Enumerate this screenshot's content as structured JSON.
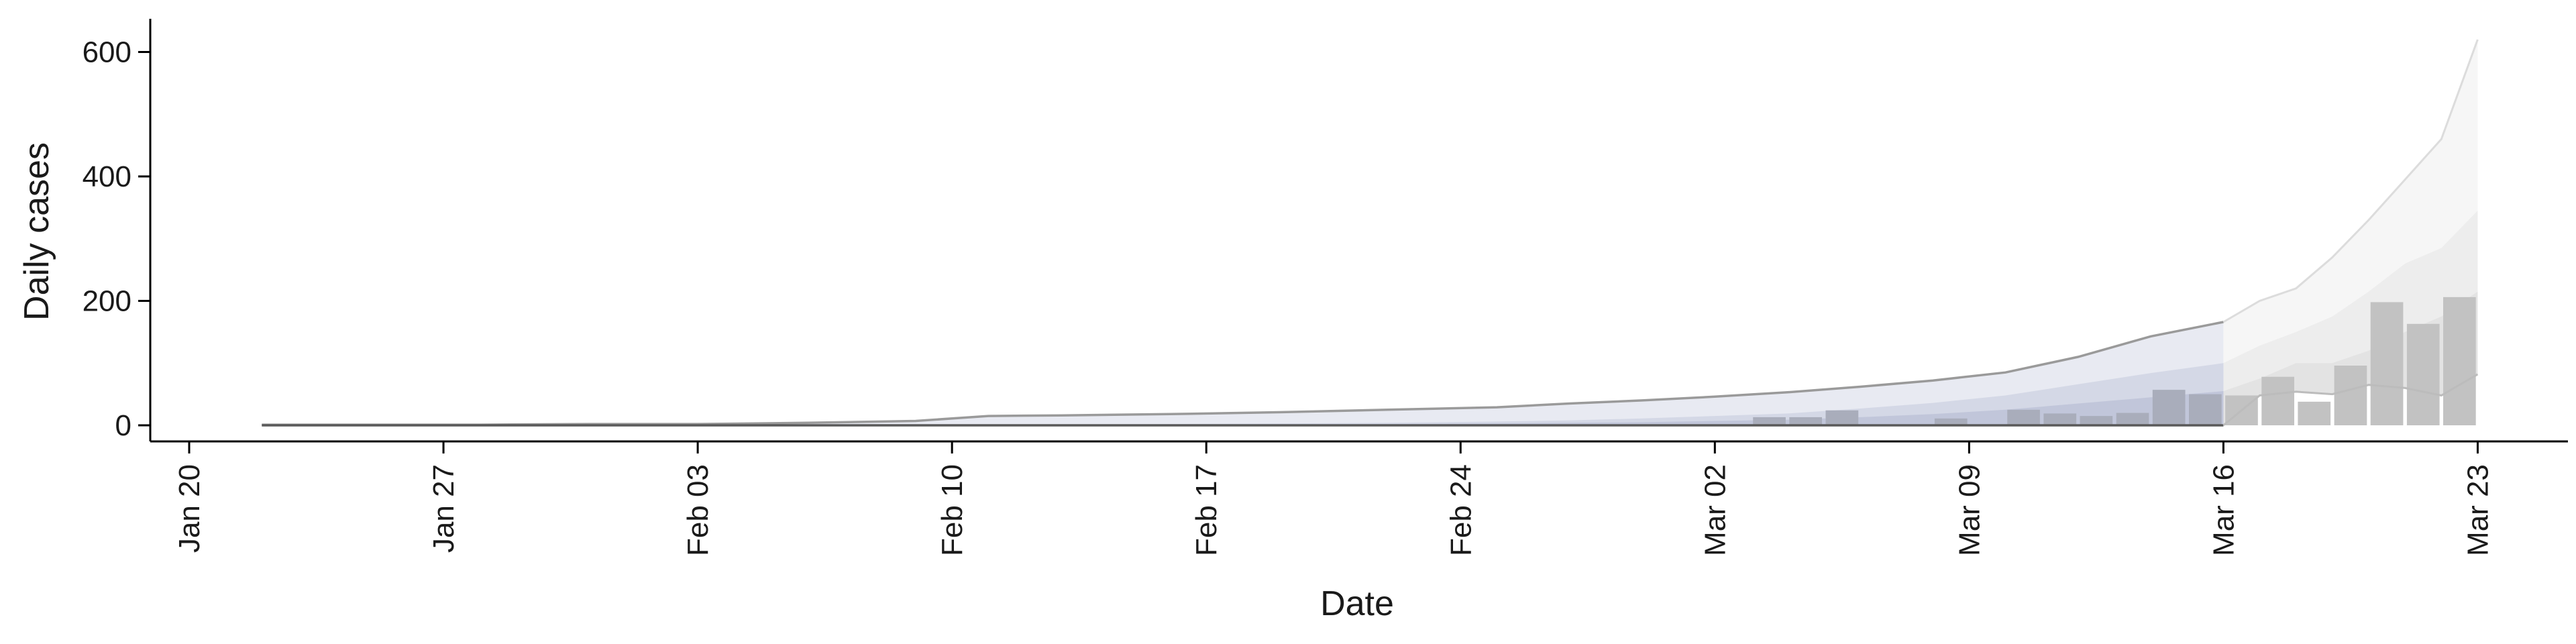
{
  "chart_data": {
    "type": "bar",
    "title": "",
    "xlabel": "Date",
    "ylabel": "Daily cases",
    "x_tick_labels": [
      "Jan 20",
      "Jan 27",
      "Feb 03",
      "Feb 10",
      "Feb 17",
      "Feb 24",
      "Mar 02",
      "Mar 09",
      "Mar 16",
      "Mar 23"
    ],
    "y_tick_labels": [
      "0",
      "200",
      "400",
      "600"
    ],
    "ylim": [
      -30,
      650
    ],
    "grid": false,
    "legend": "none",
    "colors": {
      "bars": "#c2c2c2",
      "bars_early": "#a9adbb",
      "band_outer": "#e8eaf2",
      "band_mid": "#d4d8e6",
      "band_inner": "#c1c6da",
      "forecast_band_outer": "#f6f6f6",
      "forecast_band_mid": "#ededed",
      "forecast_band_inner": "#e3e3e3",
      "upper_line": "#9a9a9a",
      "lower_line": "#5a5a5a",
      "forecast_upper_line": "#dcdcdc",
      "forecast_lower_line": "#bcbcbc"
    },
    "bars": [
      {
        "date": "2020-03-04",
        "cases": 13
      },
      {
        "date": "2020-03-05",
        "cases": 13
      },
      {
        "date": "2020-03-06",
        "cases": 24
      },
      {
        "date": "2020-03-09",
        "cases": 11
      },
      {
        "date": "2020-03-11",
        "cases": 25
      },
      {
        "date": "2020-03-12",
        "cases": 19
      },
      {
        "date": "2020-03-13",
        "cases": 15
      },
      {
        "date": "2020-03-14",
        "cases": 20
      },
      {
        "date": "2020-03-15",
        "cases": 57
      },
      {
        "date": "2020-03-16",
        "cases": 50
      },
      {
        "date": "2020-03-17",
        "cases": 48
      },
      {
        "date": "2020-03-18",
        "cases": 78
      },
      {
        "date": "2020-03-19",
        "cases": 38
      },
      {
        "date": "2020-03-20",
        "cases": 96
      },
      {
        "date": "2020-03-21",
        "cases": 198
      },
      {
        "date": "2020-03-22",
        "cases": 163
      },
      {
        "date": "2020-03-23",
        "cases": 206
      }
    ],
    "estimate": {
      "dates": [
        "2020-01-22",
        "2020-01-25",
        "2020-01-28",
        "2020-01-31",
        "2020-02-03",
        "2020-02-06",
        "2020-02-09",
        "2020-02-11",
        "2020-02-13",
        "2020-02-16",
        "2020-02-19",
        "2020-02-22",
        "2020-02-25",
        "2020-02-27",
        "2020-02-29",
        "2020-03-02",
        "2020-03-04",
        "2020-03-06",
        "2020-03-08",
        "2020-03-10",
        "2020-03-12",
        "2020-03-14",
        "2020-03-16"
      ],
      "upper_90": [
        1,
        1,
        1,
        2,
        2,
        4,
        7,
        15,
        16,
        18,
        21,
        25,
        29,
        35,
        40,
        46,
        53,
        62,
        72,
        85,
        110,
        143,
        166
      ],
      "upper_50": [
        0,
        0,
        0,
        0,
        0,
        0,
        1,
        1,
        1,
        2,
        3,
        4,
        6,
        8,
        11,
        15,
        19,
        27,
        36,
        48,
        66,
        84,
        100
      ],
      "upper_20": [
        0,
        0,
        0,
        0,
        0,
        0,
        0,
        0,
        0,
        1,
        1,
        2,
        3,
        4,
        5,
        7,
        9,
        13,
        18,
        25,
        35,
        45,
        55
      ],
      "lower_90": [
        0,
        0,
        0,
        0,
        0,
        0,
        0,
        0,
        0,
        0,
        0,
        0,
        0,
        0,
        0,
        0,
        0,
        0,
        0,
        0,
        0,
        0,
        0
      ]
    },
    "forecast": {
      "dates": [
        "2020-03-16",
        "2020-03-17",
        "2020-03-18",
        "2020-03-19",
        "2020-03-20",
        "2020-03-21",
        "2020-03-22",
        "2020-03-23"
      ],
      "upper_90": [
        166,
        200,
        220,
        270,
        330,
        395,
        460,
        620
      ],
      "upper_50": [
        100,
        128,
        150,
        175,
        215,
        260,
        285,
        345
      ],
      "upper_20": [
        55,
        75,
        100,
        100,
        120,
        150,
        175,
        215
      ],
      "lower_90": [
        0,
        48,
        54,
        50,
        65,
        60,
        48,
        82
      ]
    }
  }
}
